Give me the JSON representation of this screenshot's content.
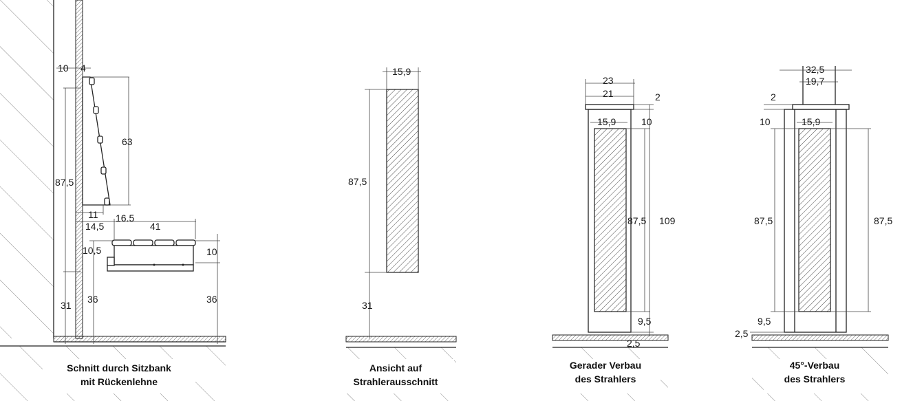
{
  "captions": {
    "section": [
      "Schnitt durch Sitzbank",
      "mit Rückenlehne"
    ],
    "view": [
      "Ansicht auf",
      "Strahlerausschnitt"
    ],
    "straight": [
      "Gerader Verbau",
      "des Strahlers"
    ],
    "angle": [
      "45°-Verbau",
      "des Strahlers"
    ]
  },
  "dims": {
    "section": {
      "d10": "10",
      "d4": "4",
      "d63": "63",
      "d87_5": "87,5",
      "d11": "11",
      "d16_5": "16.5",
      "d14_5": "14,5",
      "d41": "41",
      "d10_5": "10,5",
      "d10b": "10",
      "d31": "31",
      "d36a": "36",
      "d36b": "36"
    },
    "view": {
      "d15_9": "15,9",
      "d87_5": "87,5",
      "d31": "31"
    },
    "straight": {
      "d23": "23",
      "d21": "21",
      "d2": "2",
      "d15_9": "15,9",
      "d10": "10",
      "d87_5": "87,5",
      "d109": "109",
      "d9_5": "9,5",
      "d2_5": "2,5"
    },
    "angle": {
      "d32_5": "32,5",
      "d19_7": "19,7",
      "d2": "2",
      "d10": "10",
      "d15_9": "15,9",
      "d87_5a": "87,5",
      "d87_5b": "87,5",
      "d9_5": "9,5",
      "d2_5": "2,5"
    }
  }
}
